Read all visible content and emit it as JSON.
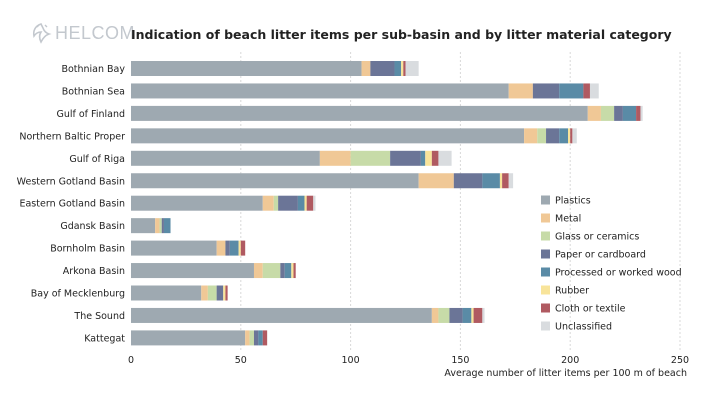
{
  "logo": {
    "text": "HELCOM"
  },
  "chart_data": {
    "type": "bar",
    "orientation": "horizontal",
    "stacked": true,
    "title": "Indication of beach litter items per sub-basin and by litter material category",
    "xlabel": "Average number of litter items per 100 m of beach",
    "ylabel": "",
    "xlim": [
      0,
      250
    ],
    "xticks": [
      0,
      50,
      100,
      150,
      200,
      250
    ],
    "grid": "vertical dashed",
    "legend_position": "right",
    "categories": [
      "Bothnian Bay",
      "Bothnian Sea",
      "Gulf of Finland",
      "Northern Baltic Proper",
      "Gulf of Riga",
      "Western Gotland Basin",
      "Eastern Gotland Basin",
      "Gdansk Basin",
      "Bornholm Basin",
      "Arkona Basin",
      "Bay of Mecklenburg",
      "The Sound",
      "Kattegat"
    ],
    "series": [
      {
        "name": "Plastics",
        "color": "#9ea9b1",
        "values": [
          105,
          172,
          208,
          179,
          86,
          131,
          60,
          11,
          39,
          56,
          32,
          137,
          52
        ]
      },
      {
        "name": "Metal",
        "color": "#f0c896",
        "values": [
          4,
          11,
          6,
          6,
          14,
          16,
          5,
          2,
          4,
          4,
          3,
          3,
          2
        ]
      },
      {
        "name": "Glass or ceramics",
        "color": "#c7dba8",
        "values": [
          0,
          0,
          6,
          4,
          18,
          0,
          2,
          1,
          0,
          8,
          4,
          5,
          2
        ]
      },
      {
        "name": "Paper or cardboard",
        "color": "#6b7597",
        "values": [
          11,
          12,
          4,
          6,
          14,
          13,
          9,
          1,
          2,
          2,
          3,
          6,
          2
        ]
      },
      {
        "name": "Processed or worked wood",
        "color": "#5a8ba6",
        "values": [
          3,
          11,
          6,
          4,
          2,
          8,
          3,
          3,
          4,
          3,
          0,
          4,
          2
        ]
      },
      {
        "name": "Rubber",
        "color": "#f8e49a",
        "values": [
          1,
          0,
          0,
          1,
          3,
          1,
          1,
          0,
          1,
          1,
          1,
          1,
          0
        ]
      },
      {
        "name": "Cloth or textile",
        "color": "#b05a61",
        "values": [
          1,
          3,
          2,
          1,
          3,
          3,
          3,
          0,
          2,
          1,
          1,
          4,
          2
        ]
      },
      {
        "name": "Unclassified",
        "color": "#d9dcdf",
        "values": [
          6,
          4,
          1,
          2,
          6,
          2,
          1,
          0,
          0,
          0,
          0,
          1,
          0
        ]
      }
    ]
  }
}
